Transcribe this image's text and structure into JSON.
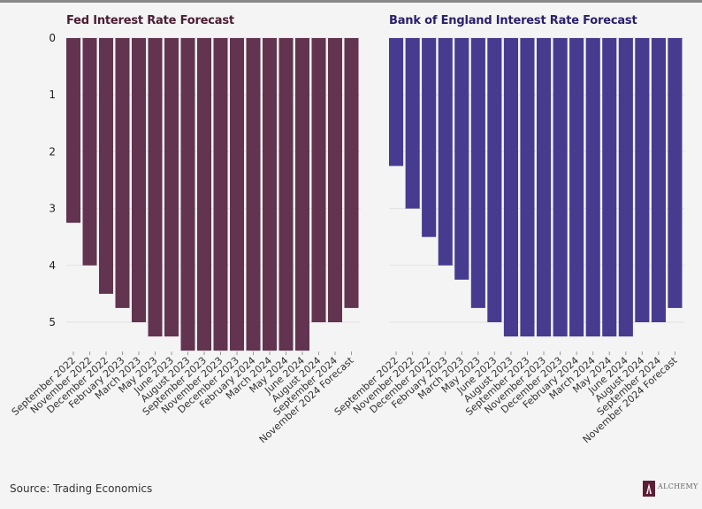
{
  "source": "Source: Trading Economics",
  "logo_text": "ALCHEMY",
  "colors": {
    "fed": "#62344f",
    "boe": "#473b8f",
    "grid": "#e2e2e2"
  },
  "chart_data": [
    {
      "type": "bar",
      "title": "Fed Interest Rate Forecast",
      "categories": [
        "September 2022",
        "November 2022",
        "December 2022",
        "February 2023",
        "March 2023",
        "May 2023",
        "June 2023",
        "August 2023",
        "September 2023",
        "November 2023",
        "December 2023",
        "February 2024",
        "March 2024",
        "May 2024",
        "June 2024",
        "August 2024",
        "September 2024",
        "November 2024 Forecast"
      ],
      "values": [
        3.25,
        4.0,
        4.5,
        4.75,
        5.0,
        5.25,
        5.25,
        5.5,
        5.5,
        5.5,
        5.5,
        5.5,
        5.5,
        5.5,
        5.5,
        5.0,
        5.0,
        4.75
      ],
      "yticks": [
        0,
        1,
        2,
        3,
        4,
        5
      ],
      "ylim": [
        0,
        5.5
      ],
      "y_inverted": true,
      "grid": true
    },
    {
      "type": "bar",
      "title": "Bank of England Interest Rate Forecast",
      "categories": [
        "September 2022",
        "November 2022",
        "December 2022",
        "February 2023",
        "March 2023",
        "May 2023",
        "June 2023",
        "August 2023",
        "September 2023",
        "November 2023",
        "December 2023",
        "February 2024",
        "March 2024",
        "May 2024",
        "June 2024",
        "August 2024",
        "September 2024",
        "November 2024 Forecast"
      ],
      "values": [
        2.25,
        3.0,
        3.5,
        4.0,
        4.25,
        4.75,
        5.0,
        5.25,
        5.25,
        5.25,
        5.25,
        5.25,
        5.25,
        5.25,
        5.25,
        5.0,
        5.0,
        4.75
      ],
      "yticks": [
        0,
        1,
        2,
        3,
        4,
        5
      ],
      "ylim": [
        0,
        5.5
      ],
      "y_inverted": true,
      "grid": true
    }
  ]
}
